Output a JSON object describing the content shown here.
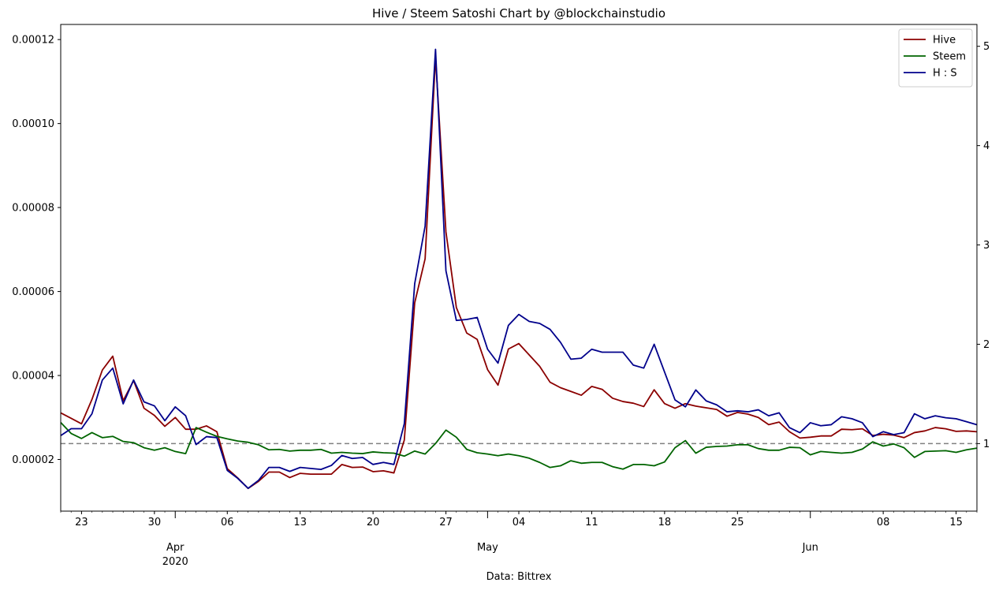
{
  "chart_data": {
    "type": "line",
    "title": "Hive / Steem Satoshi Chart by @blockchainstudio",
    "source_note": "Data: Bittrex",
    "x_start": "2020-03-21",
    "x_end": "2020-06-17",
    "x_day_ticks": [
      {
        "date": "2020-03-23",
        "label": "23"
      },
      {
        "date": "2020-03-30",
        "label": "30"
      },
      {
        "date": "2020-04-06",
        "label": "06"
      },
      {
        "date": "2020-04-13",
        "label": "13"
      },
      {
        "date": "2020-04-20",
        "label": "20"
      },
      {
        "date": "2020-04-27",
        "label": "27"
      },
      {
        "date": "2020-05-04",
        "label": "04"
      },
      {
        "date": "2020-05-11",
        "label": "11"
      },
      {
        "date": "2020-05-18",
        "label": "18"
      },
      {
        "date": "2020-05-25",
        "label": "25"
      },
      {
        "date": "2020-06-08",
        "label": "08"
      },
      {
        "date": "2020-06-15",
        "label": "15"
      }
    ],
    "x_month_ticks": [
      {
        "date": "2020-04-01",
        "label": "Apr",
        "sublabel": "2020"
      },
      {
        "date": "2020-05-01",
        "label": "May",
        "sublabel": ""
      },
      {
        "date": "2020-06-01",
        "label": "Jun",
        "sublabel": ""
      }
    ],
    "y_left": {
      "ylim": [
        7.7e-06,
        0.0001236
      ],
      "ticks": [
        {
          "value": 2e-05,
          "label": "0.00002"
        },
        {
          "value": 4e-05,
          "label": "0.00004"
        },
        {
          "value": 6e-05,
          "label": "0.00006"
        },
        {
          "value": 8e-05,
          "label": "0.00008"
        },
        {
          "value": 0.0001,
          "label": "0.00010"
        },
        {
          "value": 0.00012,
          "label": "0.00012"
        }
      ]
    },
    "y_right": {
      "ylim": [
        0.32,
        5.22
      ],
      "ticks": [
        {
          "value": 1,
          "label": "1"
        },
        {
          "value": 2,
          "label": "2"
        },
        {
          "value": 3,
          "label": "3"
        },
        {
          "value": 4,
          "label": "4"
        },
        {
          "value": 5,
          "label": "5"
        }
      ]
    },
    "reference_line": {
      "axis": "right",
      "value": 1,
      "style": "dashed",
      "color": "#808080"
    },
    "legend": {
      "placement": "top-right",
      "entries": [
        "Hive",
        "Steem",
        "H : S"
      ]
    },
    "series": [
      {
        "name": "Hive",
        "axis": "left",
        "color": "#8b0000",
        "values": [
          3.11e-05,
          2.98e-05,
          2.85e-05,
          3.43e-05,
          4.13e-05,
          4.46e-05,
          3.4e-05,
          3.88e-05,
          3.22e-05,
          3.05e-05,
          2.79e-05,
          3e-05,
          2.72e-05,
          2.72e-05,
          2.8e-05,
          2.66e-05,
          1.78e-05,
          1.56e-05,
          1.31e-05,
          1.48e-05,
          1.7e-05,
          1.7e-05,
          1.57e-05,
          1.67e-05,
          1.65e-05,
          1.65e-05,
          1.65e-05,
          1.88e-05,
          1.81e-05,
          1.82e-05,
          1.71e-05,
          1.73e-05,
          1.68e-05,
          2.46e-05,
          5.73e-05,
          6.78e-05,
          0.0001158,
          7.42e-05,
          5.62e-05,
          5.01e-05,
          4.86e-05,
          4.14e-05,
          3.77e-05,
          4.63e-05,
          4.76e-05,
          4.49e-05,
          4.22e-05,
          3.84e-05,
          3.71e-05,
          3.62e-05,
          3.53e-05,
          3.74e-05,
          3.67e-05,
          3.46e-05,
          3.38e-05,
          3.34e-05,
          3.26e-05,
          3.66e-05,
          3.33e-05,
          3.22e-05,
          3.33e-05,
          3.27e-05,
          3.23e-05,
          3.19e-05,
          3.03e-05,
          3.12e-05,
          3.08e-05,
          3e-05,
          2.83e-05,
          2.89e-05,
          2.66e-05,
          2.51e-05,
          2.53e-05,
          2.56e-05,
          2.56e-05,
          2.72e-05,
          2.71e-05,
          2.73e-05,
          2.57e-05,
          2.6e-05,
          2.58e-05,
          2.52e-05,
          2.64e-05,
          2.68e-05,
          2.76e-05,
          2.73e-05,
          2.67e-05,
          2.68e-05,
          2.66e-05
        ]
      },
      {
        "name": "Steem",
        "axis": "left",
        "color": "#006400",
        "values": [
          2.88e-05,
          2.62e-05,
          2.5e-05,
          2.64e-05,
          2.52e-05,
          2.55e-05,
          2.43e-05,
          2.4e-05,
          2.28e-05,
          2.22e-05,
          2.28e-05,
          2.19e-05,
          2.14e-05,
          2.76e-05,
          2.65e-05,
          2.55e-05,
          2.49e-05,
          2.44e-05,
          2.41e-05,
          2.35e-05,
          2.23e-05,
          2.24e-05,
          2.2e-05,
          2.22e-05,
          2.22e-05,
          2.24e-05,
          2.15e-05,
          2.17e-05,
          2.15e-05,
          2.14e-05,
          2.18e-05,
          2.16e-05,
          2.15e-05,
          2.08e-05,
          2.2e-05,
          2.13e-05,
          2.38e-05,
          2.7e-05,
          2.53e-05,
          2.24e-05,
          2.16e-05,
          2.13e-05,
          2.09e-05,
          2.13e-05,
          2.09e-05,
          2.03e-05,
          1.93e-05,
          1.81e-05,
          1.85e-05,
          1.97e-05,
          1.91e-05,
          1.93e-05,
          1.93e-05,
          1.83e-05,
          1.77e-05,
          1.88e-05,
          1.88e-05,
          1.85e-05,
          1.94e-05,
          2.28e-05,
          2.45e-05,
          2.15e-05,
          2.29e-05,
          2.31e-05,
          2.32e-05,
          2.35e-05,
          2.35e-05,
          2.26e-05,
          2.22e-05,
          2.22e-05,
          2.29e-05,
          2.28e-05,
          2.11e-05,
          2.19e-05,
          2.17e-05,
          2.15e-05,
          2.17e-05,
          2.25e-05,
          2.42e-05,
          2.32e-05,
          2.37e-05,
          2.28e-05,
          2.05e-05,
          2.19e-05,
          2.2e-05,
          2.21e-05,
          2.17e-05,
          2.23e-05,
          2.27e-05
        ]
      },
      {
        "name": "H : S",
        "axis": "right",
        "color": "#00008b",
        "values": [
          1.08,
          1.15,
          1.15,
          1.3,
          1.64,
          1.76,
          1.4,
          1.64,
          1.42,
          1.38,
          1.23,
          1.37,
          1.28,
          0.99,
          1.07,
          1.06,
          0.73,
          0.65,
          0.55,
          0.63,
          0.76,
          0.76,
          0.72,
          0.76,
          0.75,
          0.74,
          0.78,
          0.88,
          0.85,
          0.86,
          0.79,
          0.81,
          0.79,
          1.2,
          2.61,
          3.19,
          4.97,
          2.74,
          2.24,
          2.25,
          2.27,
          1.95,
          1.81,
          2.19,
          2.3,
          2.23,
          2.21,
          2.15,
          2.02,
          1.85,
          1.86,
          1.95,
          1.92,
          1.92,
          1.92,
          1.79,
          1.76,
          2.0,
          1.72,
          1.44,
          1.37,
          1.54,
          1.43,
          1.39,
          1.32,
          1.33,
          1.32,
          1.34,
          1.28,
          1.31,
          1.16,
          1.11,
          1.21,
          1.18,
          1.19,
          1.27,
          1.25,
          1.21,
          1.07,
          1.12,
          1.09,
          1.11,
          1.3,
          1.25,
          1.28,
          1.26,
          1.25,
          1.22,
          1.19
        ]
      }
    ]
  }
}
